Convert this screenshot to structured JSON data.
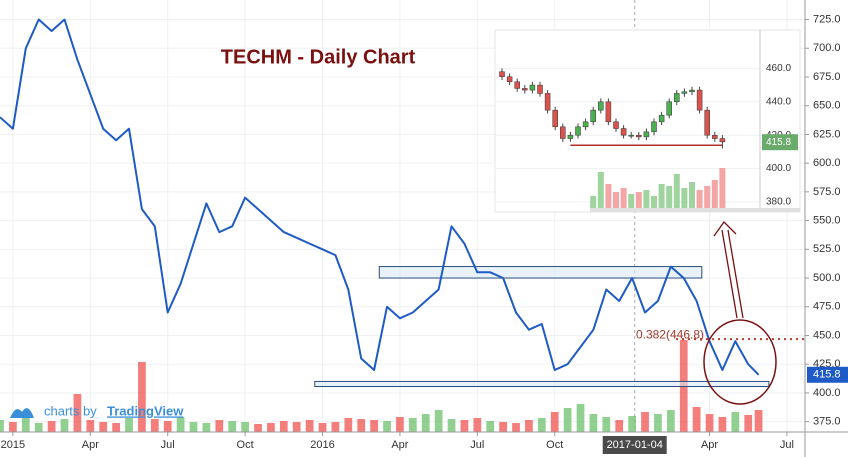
{
  "chart_data": {
    "type": "line",
    "title": "TECHM - Daily Chart",
    "color": "#1e5bc6",
    "x": [
      -0.5,
      0,
      0.5,
      1,
      1.5,
      2,
      2.5,
      3,
      3.5,
      4,
      4.5,
      5,
      5.5,
      6,
      6.5,
      7,
      7.5,
      8,
      8.5,
      9,
      9.5,
      10,
      10.5,
      11,
      11.5,
      12,
      12.5,
      13,
      13.5,
      14,
      14.5,
      15,
      15.5,
      16,
      16.5,
      17,
      17.5,
      18,
      18.5,
      19,
      19.5,
      20,
      20.5,
      21,
      21.5,
      22,
      22.5,
      23,
      23.5,
      24,
      24.5,
      25,
      25.5,
      26,
      26.5,
      27,
      27.5,
      28,
      28.5,
      28.9
    ],
    "values": [
      640,
      630,
      700,
      725,
      715,
      725,
      690,
      660,
      630,
      620,
      630,
      560,
      545,
      470,
      495,
      530,
      565,
      540,
      545,
      570,
      560,
      550,
      540,
      535,
      530,
      525,
      520,
      490,
      430,
      420,
      475,
      465,
      470,
      480,
      490,
      545,
      530,
      505,
      505,
      500,
      470,
      455,
      460,
      420,
      425,
      440,
      455,
      490,
      480,
      500,
      470,
      480,
      510,
      500,
      480,
      445,
      420,
      445,
      425,
      415.8
    ],
    "volume": [
      12,
      10,
      14,
      9,
      11,
      13,
      38,
      12,
      10,
      9,
      14,
      70,
      13,
      11,
      15,
      10,
      9,
      12,
      11,
      10,
      8,
      9,
      11,
      10,
      12,
      9,
      10,
      14,
      13,
      12,
      11,
      15,
      14,
      18,
      22,
      13,
      12,
      14,
      11,
      10,
      9,
      12,
      14,
      20,
      24,
      28,
      18,
      15,
      12,
      16,
      20,
      18,
      22,
      92,
      25,
      18,
      15,
      20,
      17,
      22
    ],
    "vlim": [
      0,
      100
    ],
    "up_color": "#6cc06c",
    "down_color": "#ef5350",
    "xlim": [
      -0.5,
      30.7
    ],
    "ylim": [
      366,
      742
    ],
    "xticks": [
      {
        "value": 0,
        "label": "2015"
      },
      {
        "value": 3,
        "label": "Apr"
      },
      {
        "value": 6,
        "label": "Jul"
      },
      {
        "value": 9,
        "label": "Oct"
      },
      {
        "value": 12,
        "label": "2016"
      },
      {
        "value": 15,
        "label": "Apr"
      },
      {
        "value": 18,
        "label": "Jul"
      },
      {
        "value": 21,
        "label": "Oct"
      },
      {
        "value": 27,
        "label": "Apr"
      },
      {
        "value": 30,
        "label": "Jul"
      }
    ],
    "yticks": [
      {
        "value": 375,
        "label": "375.0"
      },
      {
        "value": 400,
        "label": "400.0"
      },
      {
        "value": 425,
        "label": "425.0"
      },
      {
        "value": 450,
        "label": "450.0"
      },
      {
        "value": 475,
        "label": "475.0"
      },
      {
        "value": 500,
        "label": "500.0"
      },
      {
        "value": 525,
        "label": "525.0"
      },
      {
        "value": 550,
        "label": "550.0"
      },
      {
        "value": 575,
        "label": "575.0"
      },
      {
        "value": 600,
        "label": "600.0"
      },
      {
        "value": 625,
        "label": "625.0"
      },
      {
        "value": 650,
        "label": "650.0"
      },
      {
        "value": 675,
        "label": "675.0"
      },
      {
        "value": 700,
        "label": "700.0"
      },
      {
        "value": 725,
        "label": "725.0"
      }
    ],
    "grid": true,
    "crosshair": {
      "value": 24.1,
      "label": "2017-01-04"
    },
    "last_price": 415.8,
    "fib": {
      "level": 446.8,
      "label": "0.382(446.8)",
      "start": 25.7
    },
    "zones": [
      {
        "x": [
          14.2,
          26.7
        ],
        "y": [
          500,
          510
        ]
      },
      {
        "x": [
          11.7,
          29.3
        ],
        "y": [
          405.6,
          410
        ]
      }
    ],
    "branding": {
      "prefix": "charts by",
      "name": "TradingView"
    },
    "inset": {
      "type": "candlestick",
      "open": [
        458,
        455,
        452,
        448,
        447,
        450,
        445,
        435,
        425,
        418,
        420,
        425,
        428,
        435,
        440,
        428,
        424,
        420,
        420,
        419,
        422,
        428,
        432,
        440,
        445,
        446,
        447,
        435,
        420,
        418
      ],
      "high": [
        460,
        457,
        454,
        450,
        452,
        452,
        447,
        437,
        427,
        422,
        427,
        430,
        437,
        442,
        442,
        430,
        426,
        422,
        422,
        424,
        430,
        434,
        442,
        447,
        448,
        449,
        449,
        437,
        422,
        420
      ],
      "low": [
        453,
        450,
        446,
        445,
        445,
        443,
        433,
        423,
        416,
        416,
        418,
        423,
        426,
        433,
        426,
        422,
        418,
        418,
        417,
        417,
        420,
        426,
        430,
        438,
        443,
        444,
        433,
        418,
        416,
        412
      ],
      "close": [
        455,
        452,
        448,
        447,
        450,
        445,
        435,
        425,
        418,
        420,
        425,
        428,
        435,
        440,
        428,
        424,
        420,
        420,
        419,
        422,
        428,
        432,
        440,
        445,
        446,
        447,
        435,
        420,
        418,
        416
      ],
      "volume": [
        null,
        null,
        null,
        null,
        null,
        null,
        null,
        null,
        null,
        null,
        null,
        null,
        30,
        90,
        60,
        40,
        50,
        35,
        40,
        45,
        30,
        60,
        55,
        85,
        50,
        65,
        45,
        55,
        70,
        100
      ],
      "vlim": [
        0,
        100
      ],
      "ylim": [
        374,
        483
      ],
      "yticks": [
        {
          "value": 380,
          "label": "380.0"
        },
        {
          "value": 400,
          "label": "400.0"
        },
        {
          "value": 420,
          "label": "420.0"
        },
        {
          "value": 440,
          "label": "440.0"
        },
        {
          "value": 460,
          "label": "460.0"
        }
      ],
      "level": 414,
      "last_price": 415.8
    }
  }
}
